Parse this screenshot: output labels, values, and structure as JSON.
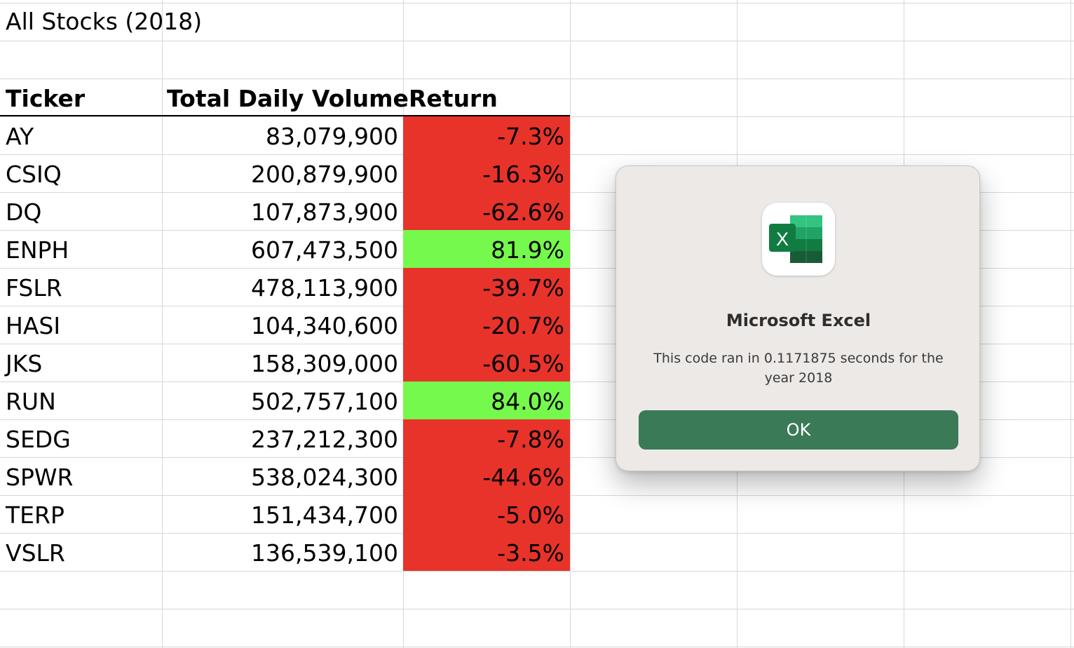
{
  "sheet": {
    "title": "All Stocks (2018)",
    "headers": {
      "ticker": "Ticker",
      "volume": "Total Daily Volume",
      "return": "Return"
    },
    "rows": [
      {
        "ticker": "AY",
        "volume": "83,079,900",
        "return": "-7.3%",
        "status": "negative"
      },
      {
        "ticker": "CSIQ",
        "volume": "200,879,900",
        "return": "-16.3%",
        "status": "negative"
      },
      {
        "ticker": "DQ",
        "volume": "107,873,900",
        "return": "-62.6%",
        "status": "negative"
      },
      {
        "ticker": "ENPH",
        "volume": "607,473,500",
        "return": "81.9%",
        "status": "positive"
      },
      {
        "ticker": "FSLR",
        "volume": "478,113,900",
        "return": "-39.7%",
        "status": "negative"
      },
      {
        "ticker": "HASI",
        "volume": "104,340,600",
        "return": "-20.7%",
        "status": "negative"
      },
      {
        "ticker": "JKS",
        "volume": "158,309,000",
        "return": "-60.5%",
        "status": "negative"
      },
      {
        "ticker": "RUN",
        "volume": "502,757,100",
        "return": "84.0%",
        "status": "positive"
      },
      {
        "ticker": "SEDG",
        "volume": "237,212,300",
        "return": "-7.8%",
        "status": "negative"
      },
      {
        "ticker": "SPWR",
        "volume": "538,024,300",
        "return": "-44.6%",
        "status": "negative"
      },
      {
        "ticker": "TERP",
        "volume": "151,434,700",
        "return": "-5.0%",
        "status": "negative"
      },
      {
        "ticker": "VSLR",
        "volume": "136,539,100",
        "return": "-3.5%",
        "status": "negative"
      }
    ]
  },
  "colors": {
    "negative": "#e8332a",
    "positive": "#75f94c",
    "gridline": "#d7d7d7",
    "button": "#3b7a56",
    "excel_green": "#21a366"
  },
  "dialog": {
    "app_icon": "excel-app-icon",
    "title": "Microsoft Excel",
    "message": "This code ran in 0.1171875 seconds for the year 2018",
    "ok_label": "OK"
  }
}
